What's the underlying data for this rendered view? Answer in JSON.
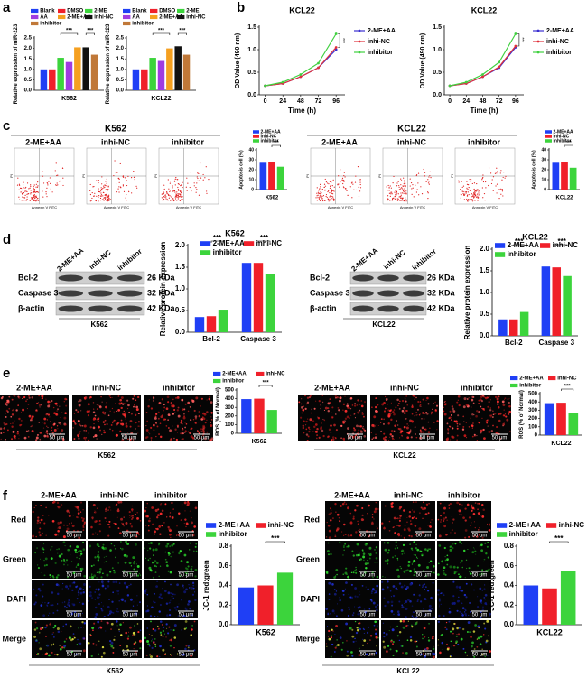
{
  "panel_labels": [
    "a",
    "b",
    "c",
    "d",
    "e",
    "f"
  ],
  "groups": [
    "2-ME+AA",
    "inhi-NC",
    "inhibitor"
  ],
  "cell_lines": [
    "K562",
    "KCL22"
  ],
  "flow_axes": {
    "x": "Annexin V FITC",
    "y": "PI"
  },
  "blot_rows": [
    "Bcl-2",
    "Caspase 3",
    "β-actin"
  ],
  "blot_sizes": [
    "26 KDa",
    "32 KDa",
    "42 KDa"
  ],
  "scale_bar": "50 μm",
  "channels": [
    "Red",
    "Green",
    "DAPI",
    "Merge"
  ],
  "chart_data": [
    {
      "type": "bar",
      "xlabel": "K562",
      "ylabel": "Relative expression of miR-223",
      "series": [
        {
          "name": "Blank",
          "color": "#1f3ff5",
          "values": [
            1.0
          ]
        },
        {
          "name": "DMSO",
          "color": "#f0202a",
          "values": [
            1.0
          ]
        },
        {
          "name": "2-ME",
          "color": "#3cd43c",
          "values": [
            1.55
          ]
        },
        {
          "name": "AA",
          "color": "#a03ce0",
          "values": [
            1.35
          ]
        },
        {
          "name": "2-ME+AA",
          "color": "#f5a020",
          "values": [
            2.05
          ]
        },
        {
          "name": "inhi-NC",
          "color": "#111111",
          "values": [
            2.05
          ]
        },
        {
          "name": "inhibitor",
          "color": "#c07838",
          "values": [
            1.7
          ]
        }
      ],
      "ylim": [
        0,
        2.5
      ],
      "yticks": [
        {
          "value": 0,
          "label": "0.0"
        },
        0.5,
        {
          "value": 1,
          "label": "1.0"
        },
        1.5,
        {
          "value": 2,
          "label": "2.0"
        },
        2.5
      ],
      "significance": [
        "***",
        "***"
      ]
    },
    {
      "type": "bar",
      "xlabel": "KCL22",
      "ylabel": "Relative expression of miR-223",
      "series": [
        {
          "name": "Blank",
          "color": "#1f3ff5",
          "values": [
            1.0
          ]
        },
        {
          "name": "DMSO",
          "color": "#f0202a",
          "values": [
            1.0
          ]
        },
        {
          "name": "2-ME",
          "color": "#3cd43c",
          "values": [
            1.55
          ]
        },
        {
          "name": "AA",
          "color": "#a03ce0",
          "values": [
            1.4
          ]
        },
        {
          "name": "2-ME+AA",
          "color": "#f5a020",
          "values": [
            2.0
          ]
        },
        {
          "name": "inhi-NC",
          "color": "#111111",
          "values": [
            2.1
          ]
        },
        {
          "name": "inhibitor",
          "color": "#c07838",
          "values": [
            1.7
          ]
        }
      ],
      "ylim": [
        0,
        2.5
      ],
      "yticks": [
        {
          "value": 0,
          "label": "0.0"
        },
        0.5,
        {
          "value": 1,
          "label": "1.0"
        },
        1.5,
        {
          "value": 2,
          "label": "2.0"
        },
        2.5
      ],
      "significance": [
        "***",
        "***"
      ]
    },
    {
      "type": "line",
      "title": "KCL22",
      "xlabel": "Time (h)",
      "ylabel": "OD Value (490 nm)",
      "x": [
        0,
        24,
        48,
        72,
        96
      ],
      "series": [
        {
          "name": "2-ME+AA",
          "color": "#3a2fd0",
          "values": [
            0.2,
            0.25,
            0.4,
            0.6,
            1.0
          ]
        },
        {
          "name": "inhi-NC",
          "color": "#e0303a",
          "values": [
            0.2,
            0.25,
            0.4,
            0.6,
            1.05
          ]
        },
        {
          "name": "inhibitor",
          "color": "#40d040",
          "values": [
            0.2,
            0.28,
            0.45,
            0.7,
            1.35
          ]
        }
      ],
      "xlim": [
        -8,
        108
      ],
      "xticks": [
        0,
        24,
        48,
        72,
        96
      ],
      "ylim": [
        0,
        1.5
      ],
      "yticks": [
        {
          "value": 0,
          "label": "0.0"
        },
        0.5,
        {
          "value": 1,
          "label": "1.0"
        },
        1.5
      ],
      "significance": [
        "***"
      ]
    },
    {
      "type": "line",
      "title": "KCL22",
      "xlabel": "Time (h)",
      "ylabel": "OD Value (490 nm)",
      "x": [
        0,
        24,
        48,
        72,
        96
      ],
      "series": [
        {
          "name": "2-ME+AA",
          "color": "#3a2fd0",
          "values": [
            0.2,
            0.25,
            0.4,
            0.6,
            1.05
          ]
        },
        {
          "name": "inhi-NC",
          "color": "#e0303a",
          "values": [
            0.2,
            0.25,
            0.4,
            0.62,
            1.08
          ]
        },
        {
          "name": "inhibitor",
          "color": "#40d040",
          "values": [
            0.2,
            0.28,
            0.45,
            0.72,
            1.35
          ]
        }
      ],
      "xlim": [
        -8,
        108
      ],
      "xticks": [
        0,
        24,
        48,
        72,
        96
      ],
      "ylim": [
        0,
        1.5
      ],
      "yticks": [
        {
          "value": 0,
          "label": "0.0"
        },
        0.5,
        {
          "value": 1,
          "label": "1.0"
        },
        1.5
      ],
      "significance": [
        "***"
      ]
    },
    {
      "type": "bar",
      "xlabel": "K562",
      "ylabel": "Apoptosis cell (%)",
      "series": [
        {
          "name": "2-ME+AA",
          "color": "#1f3ff5",
          "values": [
            27
          ]
        },
        {
          "name": "inhi-NC",
          "color": "#f0202a",
          "values": [
            28
          ]
        },
        {
          "name": "inhibitor",
          "color": "#3cd43c",
          "values": [
            23
          ]
        }
      ],
      "ylim": [
        0,
        40
      ],
      "yticks": [
        0,
        10,
        20,
        30,
        40
      ],
      "significance": [
        "***"
      ]
    },
    {
      "type": "bar",
      "xlabel": "KCL22",
      "ylabel": "Apoptosis cell (%)",
      "series": [
        {
          "name": "2-ME+AA",
          "color": "#1f3ff5",
          "values": [
            27
          ]
        },
        {
          "name": "inhi-NC",
          "color": "#f0202a",
          "values": [
            28
          ]
        },
        {
          "name": "inhibitor",
          "color": "#3cd43c",
          "values": [
            22
          ]
        }
      ],
      "ylim": [
        0,
        40
      ],
      "yticks": [
        0,
        10,
        20,
        30,
        40
      ],
      "significance": [
        "***"
      ]
    },
    {
      "type": "bar",
      "title": "K562",
      "ylabel": "Relative protein expression",
      "categories": [
        "Bcl-2",
        "Caspase 3"
      ],
      "series": [
        {
          "name": "2-ME+AA",
          "color": "#1f3ff5",
          "values": [
            0.35,
            1.6
          ]
        },
        {
          "name": "inhi-NC",
          "color": "#f0202a",
          "values": [
            0.37,
            1.6
          ]
        },
        {
          "name": "inhibitor",
          "color": "#3cd43c",
          "values": [
            0.52,
            1.35
          ]
        }
      ],
      "ylim": [
        0,
        2
      ],
      "yticks": [
        {
          "value": 0,
          "label": "0.0"
        },
        0.5,
        {
          "value": 1,
          "label": "1.0"
        },
        1.5,
        {
          "value": 2,
          "label": "2.0"
        }
      ],
      "significance": [
        "***",
        "***"
      ]
    },
    {
      "type": "bar",
      "title": "KCL22",
      "ylabel": "Relative protein expression",
      "categories": [
        "Bcl-2",
        "Caspase 3"
      ],
      "series": [
        {
          "name": "2-ME+AA",
          "color": "#1f3ff5",
          "values": [
            0.38,
            1.6
          ]
        },
        {
          "name": "inhi-NC",
          "color": "#f0202a",
          "values": [
            0.38,
            1.58
          ]
        },
        {
          "name": "inhibitor",
          "color": "#3cd43c",
          "values": [
            0.55,
            1.38
          ]
        }
      ],
      "ylim": [
        0,
        2
      ],
      "yticks": [
        {
          "value": 0,
          "label": "0.0"
        },
        0.5,
        {
          "value": 1,
          "label": "1.0"
        },
        1.5,
        {
          "value": 2,
          "label": "2.0"
        }
      ],
      "significance": [
        "***",
        "***"
      ]
    },
    {
      "type": "bar",
      "xlabel": "K562",
      "ylabel": "ROS (% of Normal)",
      "series": [
        {
          "name": "2-ME+AA",
          "color": "#1f3ff5",
          "values": [
            395
          ]
        },
        {
          "name": "inhi-NC",
          "color": "#f0202a",
          "values": [
            400
          ]
        },
        {
          "name": "inhibitor",
          "color": "#3cd43c",
          "values": [
            270
          ]
        }
      ],
      "ylim": [
        0,
        500
      ],
      "yticks": [
        0,
        100,
        200,
        300,
        400,
        500
      ],
      "significance": [
        "***"
      ]
    },
    {
      "type": "bar",
      "xlabel": "KCL22",
      "ylabel": "ROS (% of Normal)",
      "series": [
        {
          "name": "2-ME+AA",
          "color": "#1f3ff5",
          "values": [
            385
          ]
        },
        {
          "name": "inhi-NC",
          "color": "#f0202a",
          "values": [
            390
          ]
        },
        {
          "name": "inhibitor",
          "color": "#3cd43c",
          "values": [
            270
          ]
        }
      ],
      "ylim": [
        0,
        500
      ],
      "yticks": [
        0,
        100,
        200,
        300,
        400,
        500
      ],
      "significance": [
        "***"
      ]
    },
    {
      "type": "bar",
      "xlabel": "K562",
      "ylabel": "JC-1 red:green",
      "series": [
        {
          "name": "2-ME+AA",
          "color": "#1f3ff5",
          "values": [
            0.38
          ]
        },
        {
          "name": "inhi-NC",
          "color": "#f0202a",
          "values": [
            0.4
          ]
        },
        {
          "name": "inhibitor",
          "color": "#3cd43c",
          "values": [
            0.53
          ]
        }
      ],
      "ylim": [
        0,
        0.8
      ],
      "yticks": [
        {
          "value": 0,
          "label": "0.0"
        },
        0.2,
        0.4,
        0.6,
        0.8
      ],
      "significance": [
        "***"
      ]
    },
    {
      "type": "bar",
      "xlabel": "KCL22",
      "ylabel": "JC-1 red:green",
      "series": [
        {
          "name": "2-ME+AA",
          "color": "#1f3ff5",
          "values": [
            0.4
          ]
        },
        {
          "name": "inhi-NC",
          "color": "#f0202a",
          "values": [
            0.37
          ]
        },
        {
          "name": "inhibitor",
          "color": "#3cd43c",
          "values": [
            0.55
          ]
        }
      ],
      "ylim": [
        0,
        0.8
      ],
      "yticks": [
        {
          "value": 0,
          "label": "0.0"
        },
        0.2,
        0.4,
        0.6,
        0.8
      ],
      "significance": [
        "***"
      ]
    }
  ]
}
